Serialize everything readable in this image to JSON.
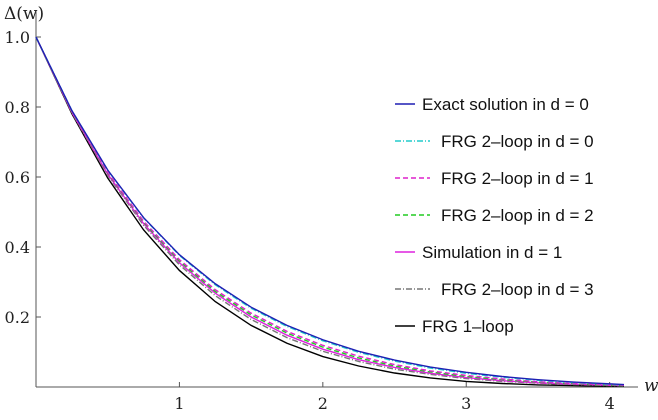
{
  "chart_data": {
    "type": "line",
    "xlabel": "w",
    "ylabel": "Δ(w)",
    "xlim": [
      0,
      4.1
    ],
    "ylim": [
      -0.0,
      1.02
    ],
    "x_ticks": [
      "1",
      "2",
      "3",
      "4"
    ],
    "y_ticks": [
      "0.2",
      "0.4",
      "0.6",
      "0.8",
      "1.0"
    ],
    "legend_position": "right",
    "series": [
      {
        "name": "Exact solution in d = 0",
        "color": "#1f1fb4",
        "dash": "solid",
        "x": [
          0,
          0.25,
          0.5,
          0.75,
          1,
          1.25,
          1.5,
          1.75,
          2,
          2.25,
          2.5,
          2.75,
          3,
          3.25,
          3.5,
          3.75,
          4,
          4.1
        ],
        "y": [
          1.0,
          0.79,
          0.62,
          0.484,
          0.378,
          0.295,
          0.228,
          0.176,
          0.135,
          0.102,
          0.077,
          0.057,
          0.042,
          0.03,
          0.021,
          0.014,
          0.009,
          0.007
        ]
      },
      {
        "name": "FRG 2–loop in d = 0",
        "color": "#22cccc",
        "dash": "dashdot",
        "x": [
          0,
          0.25,
          0.5,
          0.75,
          1,
          1.25,
          1.5,
          1.75,
          2,
          2.25,
          2.5,
          2.75,
          3,
          3.25,
          3.5,
          3.75,
          4,
          4.1
        ],
        "y": [
          1.0,
          0.79,
          0.619,
          0.483,
          0.376,
          0.292,
          0.225,
          0.173,
          0.132,
          0.099,
          0.074,
          0.054,
          0.039,
          0.028,
          0.019,
          0.013,
          0.008,
          0.006
        ]
      },
      {
        "name": "FRG 2–loop in d = 1",
        "color": "#dd22cc",
        "dash": "dashed",
        "x": [
          0,
          0.25,
          0.5,
          0.75,
          1,
          1.25,
          1.5,
          1.75,
          2,
          2.25,
          2.5,
          2.75,
          3,
          3.25,
          3.5,
          3.75,
          4,
          4.1
        ],
        "y": [
          1.0,
          0.787,
          0.613,
          0.474,
          0.364,
          0.278,
          0.211,
          0.159,
          0.119,
          0.088,
          0.064,
          0.046,
          0.033,
          0.023,
          0.015,
          0.01,
          0.006,
          0.005
        ]
      },
      {
        "name": "FRG 2–loop in d = 2",
        "color": "#22cc22",
        "dash": "dashed",
        "x": [
          0,
          0.25,
          0.5,
          0.75,
          1,
          1.25,
          1.5,
          1.75,
          2,
          2.25,
          2.5,
          2.75,
          3,
          3.25,
          3.5,
          3.75,
          4,
          4.1
        ],
        "y": [
          1.0,
          0.786,
          0.611,
          0.471,
          0.36,
          0.273,
          0.206,
          0.154,
          0.114,
          0.083,
          0.06,
          0.043,
          0.03,
          0.021,
          0.014,
          0.009,
          0.005,
          0.004
        ]
      },
      {
        "name": "Simulation in d = 1",
        "color": "#dd22dd",
        "dash": "solid",
        "x": [
          0,
          0.25,
          0.5,
          0.75,
          1,
          1.25,
          1.5,
          1.75,
          2,
          2.25,
          2.5,
          2.75,
          3,
          3.25,
          3.5,
          3.75,
          4,
          4.1
        ],
        "y": [
          1.0,
          0.785,
          0.608,
          0.467,
          0.355,
          0.268,
          0.2,
          0.148,
          0.108,
          0.078,
          0.056,
          0.039,
          0.027,
          0.018,
          0.012,
          0.008,
          0.005,
          0.004
        ]
      },
      {
        "name": "FRG 2–loop in d = 3",
        "color": "#777777",
        "dash": "dashdot",
        "x": [
          0,
          0.25,
          0.5,
          0.75,
          1,
          1.25,
          1.5,
          1.75,
          2,
          2.25,
          2.5,
          2.75,
          3,
          3.25,
          3.5,
          3.75,
          4,
          4.1
        ],
        "y": [
          1.0,
          0.784,
          0.605,
          0.462,
          0.349,
          0.261,
          0.193,
          0.141,
          0.102,
          0.073,
          0.051,
          0.036,
          0.024,
          0.016,
          0.011,
          0.007,
          0.004,
          0.003
        ]
      },
      {
        "name": "FRG 1–loop",
        "color": "#000000",
        "dash": "solid",
        "x": [
          0,
          0.25,
          0.5,
          0.75,
          1,
          1.25,
          1.5,
          1.75,
          2,
          2.25,
          2.5,
          2.75,
          3,
          3.25,
          3.5,
          3.75,
          4,
          4.1
        ],
        "y": [
          1.0,
          0.781,
          0.597,
          0.449,
          0.333,
          0.244,
          0.176,
          0.125,
          0.087,
          0.06,
          0.04,
          0.026,
          0.016,
          0.01,
          0.006,
          0.004,
          0.002,
          0.002
        ]
      }
    ]
  }
}
